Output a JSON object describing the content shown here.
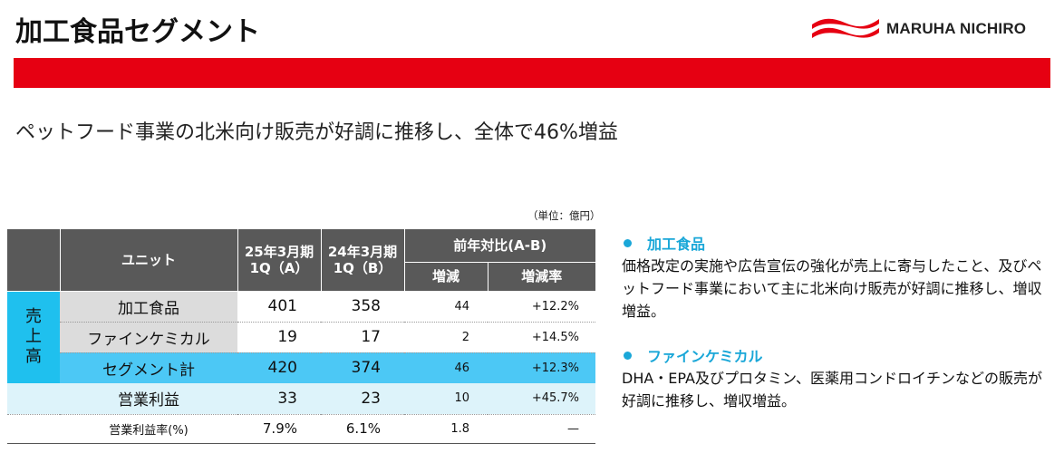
{
  "title": "加工食品セグメント",
  "logo": {
    "text": "MARUHA NICHIRO",
    "color": "#e60012"
  },
  "headline": "ペットフード事業の北米向け販売が好調に推移し、全体で46%増益",
  "unit_note": "（単位：億円）",
  "table": {
    "header": {
      "unit": "ユニット",
      "col_a": "25年3月期\n1Q（A）",
      "col_b": "24年3月期\n1Q（B）",
      "yoy": "前年対比(A-B)",
      "diff": "増減",
      "rate": "増減率"
    },
    "side_label": "売\n上\n高",
    "rows": [
      {
        "label": "加工食品",
        "a": "401",
        "b": "358",
        "diff": "44",
        "rate": "+12.2%"
      },
      {
        "label": "ファインケミカル",
        "a": "19",
        "b": "17",
        "diff": "2",
        "rate": "+14.5%"
      },
      {
        "label": "セグメント計",
        "a": "420",
        "b": "374",
        "diff": "46",
        "rate": "+12.3%"
      },
      {
        "label": "営業利益",
        "a": "33",
        "b": "23",
        "diff": "10",
        "rate": "+45.7%"
      },
      {
        "label": "営業利益率(%)",
        "a": "7.9%",
        "b": "6.1%",
        "diff": "1.8",
        "rate": "—"
      }
    ]
  },
  "notes": [
    {
      "heading": "加工食品",
      "body": "価格改定の実施や広告宣伝の強化が売上に寄与したこと、及びペットフード事業において主に北米向け販売が好調に推移し、増収増益。"
    },
    {
      "heading": "ファインケミカル",
      "body": "DHA・EPA及びプロタミン、医薬用コンドロイチンなどの販売が好調に推移し、増収増益。"
    }
  ],
  "colors": {
    "accent_red": "#e60012",
    "header_gray": "#595959",
    "cyan": "#4cc8f5",
    "light_cyan": "#ddf3fa",
    "note_blue": "#1aa7d8"
  }
}
